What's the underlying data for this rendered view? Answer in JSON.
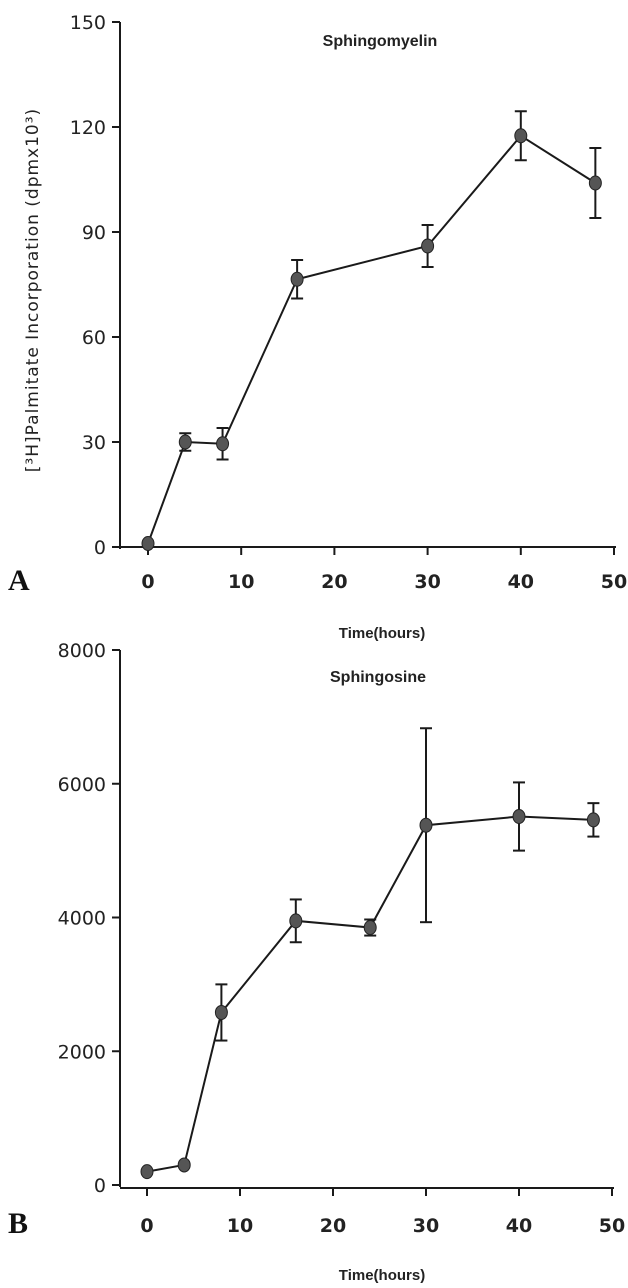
{
  "chart_data": [
    {
      "type": "line",
      "panel": "A",
      "title": "Sphingomyelin",
      "xlabel": "Time(hours)",
      "ylabel": "[³H]Palmitate Incorporation (dpmx10³)",
      "xlim": [
        0,
        50
      ],
      "ylim": [
        0,
        150
      ],
      "x_ticks": [
        "0",
        "10",
        "20",
        "30",
        "40",
        "50"
      ],
      "y_ticks": [
        "0",
        "30",
        "60",
        "90",
        "120",
        "150"
      ],
      "x": [
        0,
        4,
        8,
        16,
        30,
        40,
        48
      ],
      "series": [
        {
          "values": [
            1,
            30,
            29.5,
            76.5,
            86,
            117.5,
            104
          ],
          "errors": [
            0,
            2.5,
            4.5,
            5.5,
            6,
            7,
            10
          ]
        }
      ],
      "grid": false
    },
    {
      "type": "line",
      "panel": "B",
      "title": "Sphingosine",
      "xlabel": "Time(hours)",
      "ylabel": "",
      "xlim": [
        0,
        50
      ],
      "ylim": [
        0,
        8000
      ],
      "x_ticks": [
        "0",
        "10",
        "20",
        "30",
        "40",
        "50"
      ],
      "y_ticks": [
        "0",
        "2000",
        "4000",
        "6000",
        "8000"
      ],
      "x": [
        0,
        4,
        8,
        16,
        24,
        30,
        40,
        48
      ],
      "series": [
        {
          "values": [
            200,
            300,
            2580,
            3950,
            3850,
            5380,
            5510,
            5460
          ],
          "errors": [
            0,
            0,
            420,
            320,
            120,
            1450,
            510,
            250
          ]
        }
      ],
      "grid": false
    }
  ]
}
